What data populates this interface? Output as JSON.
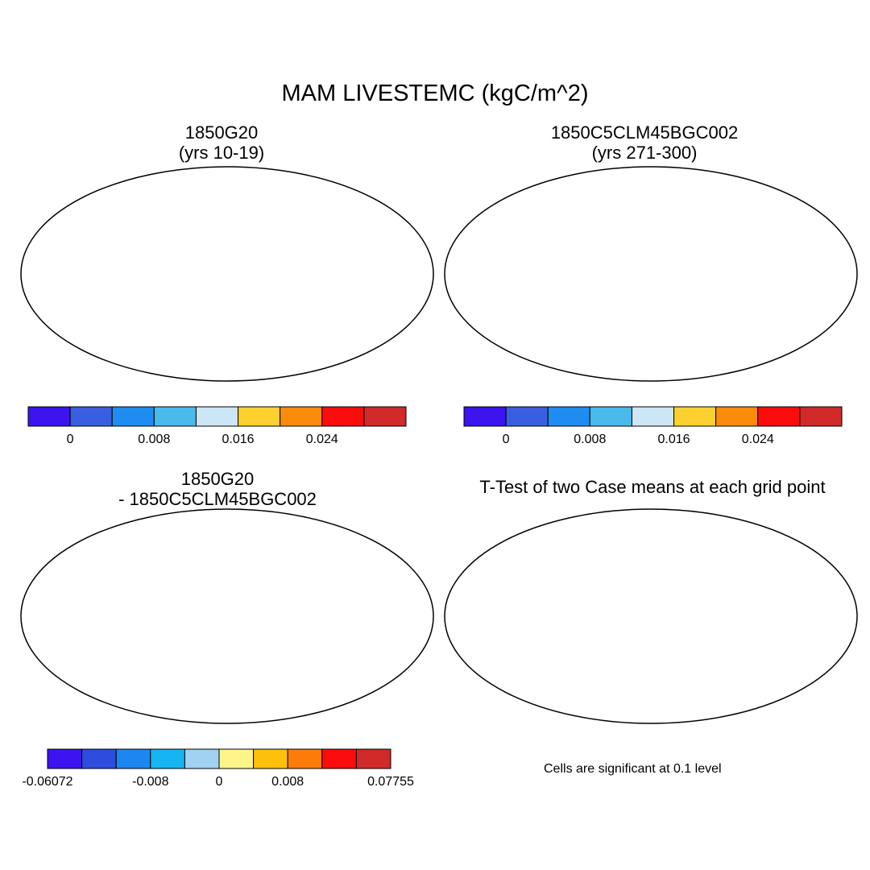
{
  "title": "MAM LIVESTEMC (kgC/m^2)",
  "panels": [
    {
      "id": "p1",
      "title": "1850G20\n(yrs 10-19)"
    },
    {
      "id": "p2",
      "title": "1850C5CLM45BGC002\n(yrs 271-300)"
    },
    {
      "id": "p3",
      "title": "1850G20\n- 1850C5CLM45BGC002"
    },
    {
      "id": "p4",
      "title": "T-Test of two Case means at each grid point"
    }
  ],
  "colorbars": {
    "abs": {
      "colors": [
        "#3b14f0",
        "#3a5ee0",
        "#1e8cf0",
        "#4ab9ec",
        "#cce6f6",
        "#fcd02e",
        "#fb8b0a",
        "#fc0d0d",
        "#d12a2a"
      ],
      "labels": [
        "0",
        "0.008",
        "0.016",
        "0.024"
      ]
    },
    "diff": {
      "colors": [
        "#3b14f0",
        "#2e4ddc",
        "#1e86f0",
        "#16b4f0",
        "#a2d2f2",
        "#fdf58a",
        "#fdc10d",
        "#fb7c0a",
        "#fc0d0d",
        "#d12a2a"
      ],
      "labels": [
        "-0.06072",
        "-0.008",
        "0",
        "0.008",
        "0.07755"
      ]
    }
  },
  "map_fill": {
    "abs_base": "#3a5ee0",
    "diff_base": "#fdf58a",
    "ttest_sig": "#ff0000",
    "tropics_abs": "#d12a2a",
    "tropics_diff": "#3b14f0"
  },
  "note": "Cells are significant at 0.1 level"
}
